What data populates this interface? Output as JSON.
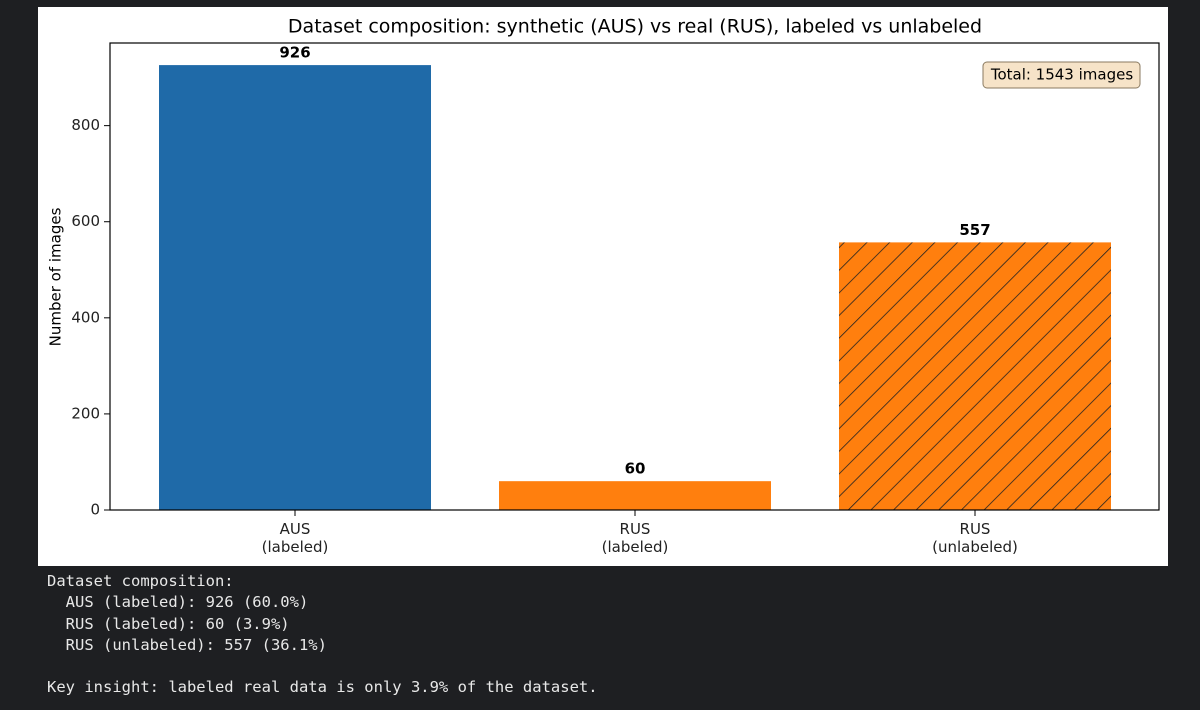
{
  "chart_data": {
    "type": "bar",
    "title": "Dataset composition: synthetic (AUS) vs real (RUS), labeled vs unlabeled",
    "y_label": "Number of images",
    "categories": [
      "AUS\n(labeled)",
      "RUS\n(labeled)",
      "RUS\n(unlabeled)"
    ],
    "values": [
      926,
      60,
      557
    ],
    "colors": [
      "#1f6aa8",
      "#ff7f0e",
      "#ff7f0e"
    ],
    "hatched": [
      false,
      false,
      true
    ],
    "ylim": [
      0,
      972
    ],
    "yticks": [
      0,
      200,
      400,
      600,
      800
    ],
    "grid": false,
    "annotation": "Total: 1543 images"
  },
  "output": {
    "summary": [
      "Dataset composition:",
      "  AUS (labeled): 926 (60.0%)",
      "  RUS (labeled): 60 (3.9%)",
      "  RUS (unlabeled): 557 (36.1%)"
    ],
    "insight": "Key insight: labeled real data is only 3.9% of the dataset."
  }
}
